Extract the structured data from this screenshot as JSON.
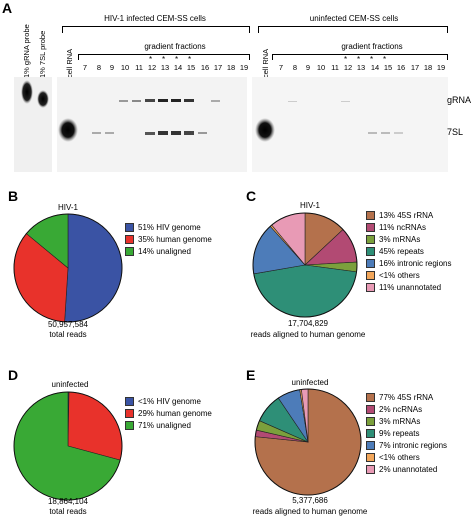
{
  "panel_labels": {
    "a": "A",
    "b": "B",
    "c": "C",
    "d": "D",
    "e": "E"
  },
  "gel": {
    "probes": [
      "1% gRNA probe",
      "1% 7SL probe"
    ],
    "left_title": "HIV-1 infected CEM-SS cells",
    "right_title": "uninfected CEM-SS cells",
    "cell_rna": "cell RNA",
    "gradient_label": "gradient fractions",
    "fractions": [
      "7",
      "8",
      "9",
      "10",
      "11",
      "12",
      "13",
      "14",
      "15",
      "16",
      "17",
      "18",
      "19"
    ],
    "stars": [
      "*",
      "*",
      "*",
      "*"
    ],
    "band_labels": {
      "grna": "gRNA",
      "sl7": "7SL"
    }
  },
  "charts": {
    "B": {
      "type": "pie",
      "title": "HIV-1",
      "caption_line1": "50,957,584",
      "caption_line2": "total reads",
      "slices": [
        {
          "label": "51% HIV genome",
          "value": 51,
          "color": "#3a53a4"
        },
        {
          "label": "35% human genome",
          "value": 35,
          "color": "#e8322b"
        },
        {
          "label": "14% unaligned",
          "value": 14,
          "color": "#39a935"
        }
      ]
    },
    "C": {
      "type": "pie",
      "title": "HIV-1",
      "caption_line1": "17,704,829",
      "caption_line2": "reads aligned to human genome",
      "slices": [
        {
          "label": "13% 45S rRNA",
          "value": 13,
          "color": "#b4714c"
        },
        {
          "label": "11% ncRNAs",
          "value": 11,
          "color": "#b24a73"
        },
        {
          "label": "3% mRNAs",
          "value": 3,
          "color": "#7ba03c"
        },
        {
          "label": "45% repeats",
          "value": 45,
          "color": "#2e8f77"
        },
        {
          "label": "16% intronic regions",
          "value": 16,
          "color": "#4d7cb9"
        },
        {
          "label": "<1% others",
          "value": 0.6,
          "color": "#f2a65a"
        },
        {
          "label": "11% unannotated",
          "value": 11,
          "color": "#e89ab5"
        }
      ]
    },
    "D": {
      "type": "pie",
      "title": "uninfected",
      "caption_line1": "18,864,104",
      "caption_line2": "total reads",
      "slices": [
        {
          "label": "<1% HIV genome",
          "value": 0.3,
          "color": "#3a53a4"
        },
        {
          "label": "29% human genome",
          "value": 29,
          "color": "#e8322b"
        },
        {
          "label": "71% unaligned",
          "value": 71,
          "color": "#39a935"
        }
      ]
    },
    "E": {
      "type": "pie",
      "title": "uninfected",
      "caption_line1": "5,377,686",
      "caption_line2": "reads aligned to human genome",
      "slices": [
        {
          "label": "77% 45S rRNA",
          "value": 77,
          "color": "#b4714c"
        },
        {
          "label": "2% ncRNAs",
          "value": 2,
          "color": "#b24a73"
        },
        {
          "label": "3% mRNAs",
          "value": 3,
          "color": "#7ba03c"
        },
        {
          "label": "9% repeats",
          "value": 9,
          "color": "#2e8f77"
        },
        {
          "label": "7% intronic regions",
          "value": 7,
          "color": "#4d7cb9"
        },
        {
          "label": "<1% others",
          "value": 0.5,
          "color": "#f2a65a"
        },
        {
          "label": "2% unannotated",
          "value": 2,
          "color": "#e89ab5"
        }
      ]
    }
  }
}
